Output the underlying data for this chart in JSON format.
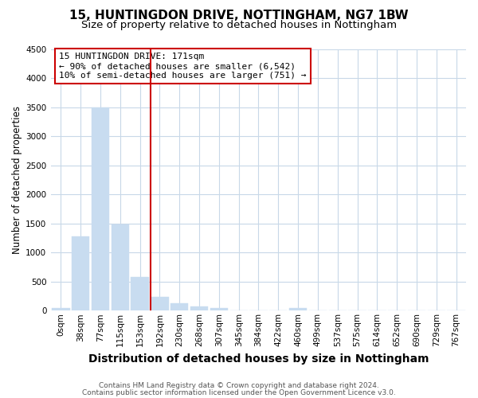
{
  "title": "15, HUNTINGDON DRIVE, NOTTINGHAM, NG7 1BW",
  "subtitle": "Size of property relative to detached houses in Nottingham",
  "xlabel": "Distribution of detached houses by size in Nottingham",
  "ylabel": "Number of detached properties",
  "bar_labels": [
    "0sqm",
    "38sqm",
    "77sqm",
    "115sqm",
    "153sqm",
    "192sqm",
    "230sqm",
    "268sqm",
    "307sqm",
    "345sqm",
    "384sqm",
    "422sqm",
    "460sqm",
    "499sqm",
    "537sqm",
    "575sqm",
    "614sqm",
    "652sqm",
    "690sqm",
    "729sqm",
    "767sqm"
  ],
  "bar_values": [
    50,
    1280,
    3500,
    1480,
    580,
    240,
    130,
    75,
    50,
    0,
    0,
    0,
    45,
    0,
    0,
    0,
    0,
    0,
    0,
    0,
    0
  ],
  "bar_color": "#c8dcf0",
  "bar_edgecolor": "#c8dcf0",
  "ylim": [
    0,
    4500
  ],
  "yticks": [
    0,
    500,
    1000,
    1500,
    2000,
    2500,
    3000,
    3500,
    4000,
    4500
  ],
  "vline_x_index": 5.0,
  "vline_color": "#cc0000",
  "annotation_title": "15 HUNTINGDON DRIVE: 171sqm",
  "annotation_line1": "← 90% of detached houses are smaller (6,542)",
  "annotation_line2": "10% of semi-detached houses are larger (751) →",
  "annotation_box_color": "#cc0000",
  "bg_color": "#ffffff",
  "plot_bg_color": "#ffffff",
  "grid_color": "#c8d8e8",
  "footer1": "Contains HM Land Registry data © Crown copyright and database right 2024.",
  "footer2": "Contains public sector information licensed under the Open Government Licence v3.0.",
  "title_fontsize": 11,
  "subtitle_fontsize": 9.5,
  "xlabel_fontsize": 10,
  "ylabel_fontsize": 8.5,
  "tick_fontsize": 7.5,
  "ann_fontsize": 8,
  "footer_fontsize": 6.5
}
